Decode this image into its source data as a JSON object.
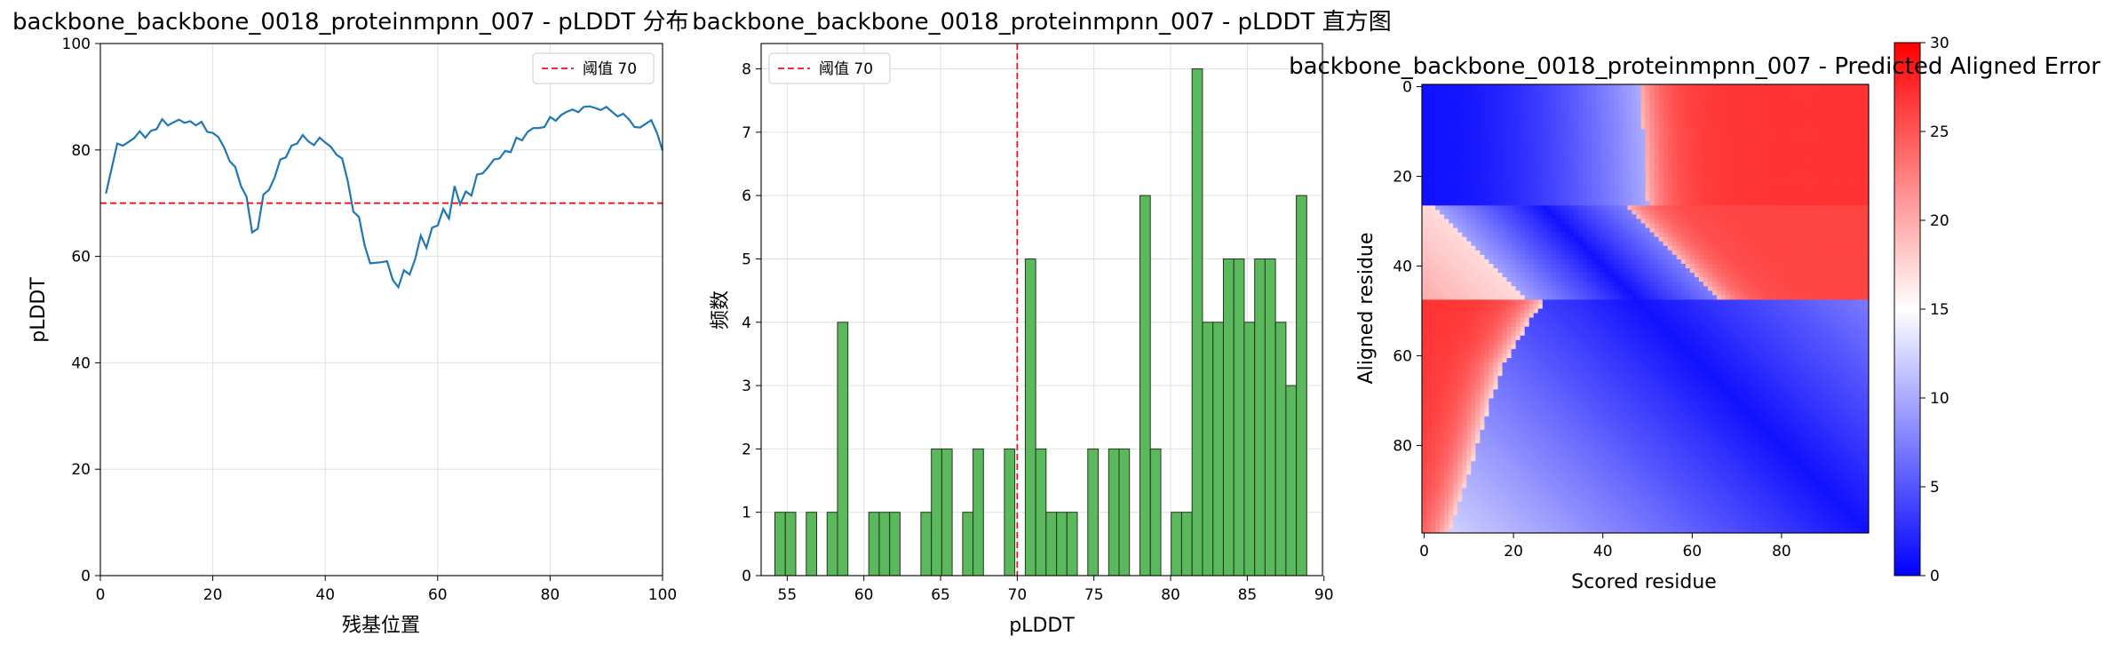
{
  "chart_data": [
    {
      "type": "line",
      "title": "backbone_backbone_0018_proteinmpnn_007 - pLDDT 分布",
      "xlabel": "残基位置",
      "ylabel": "pLDDT",
      "xlim": [
        0,
        100
      ],
      "ylim": [
        0,
        100
      ],
      "xticks": [
        0,
        20,
        40,
        60,
        80,
        100
      ],
      "yticks": [
        0,
        20,
        40,
        60,
        80,
        100
      ],
      "grid": true,
      "legend": "top-right",
      "series": [
        {
          "name": "pLDDT",
          "color": "#1f77b4",
          "x": [
            1,
            2,
            3,
            4,
            5,
            6,
            7,
            8,
            9,
            10,
            11,
            12,
            13,
            14,
            15,
            16,
            17,
            18,
            19,
            20,
            21,
            22,
            23,
            24,
            25,
            26,
            27,
            28,
            29,
            30,
            31,
            32,
            33,
            34,
            35,
            36,
            37,
            38,
            39,
            40,
            41,
            42,
            43,
            44,
            45,
            46,
            47,
            48,
            49,
            50,
            51,
            52,
            53,
            54,
            55,
            56,
            57,
            58,
            59,
            60,
            61,
            62,
            63,
            64,
            65,
            66,
            67,
            68,
            69,
            70,
            71,
            72,
            73,
            74,
            75,
            76,
            77,
            78,
            79,
            80,
            81,
            82,
            83,
            84,
            85,
            86,
            87,
            88,
            89,
            90,
            91,
            92,
            93,
            94,
            95,
            96,
            97,
            98,
            99,
            100
          ],
          "y": [
            71.8,
            76.5,
            81.2,
            80.8,
            81.5,
            82.2,
            83.5,
            82.3,
            83.6,
            83.9,
            85.8,
            84.6,
            85.2,
            85.7,
            85.1,
            85.4,
            84.6,
            85.3,
            83.4,
            83.2,
            82.4,
            80.5,
            77.9,
            76.8,
            73.2,
            71.2,
            64.5,
            65.2,
            71.6,
            72.5,
            74.8,
            78.2,
            78.6,
            80.8,
            81.2,
            82.8,
            81.6,
            80.9,
            82.3,
            81.4,
            80.6,
            79.1,
            78.4,
            74.2,
            68.4,
            67.4,
            62.1,
            58.7,
            58.8,
            58.9,
            59.1,
            55.6,
            54.2,
            57.4,
            56.6,
            59.5,
            63.9,
            61.6,
            65.4,
            65.8,
            68.9,
            67.1,
            73.2,
            69.8,
            72.2,
            71.4,
            75.4,
            75.6,
            76.8,
            78.2,
            78.4,
            79.8,
            79.6,
            82.3,
            81.8,
            83.4,
            84.1,
            84.1,
            84.3,
            86.2,
            85.5,
            86.6,
            87.2,
            87.6,
            87.1,
            88.1,
            88.2,
            87.9,
            87.5,
            88.1,
            87.2,
            86.3,
            86.8,
            85.8,
            84.3,
            84.2,
            84.9,
            85.6,
            83.2,
            79.9
          ]
        }
      ],
      "hline": {
        "y": 70,
        "label": "阈值 70",
        "color": "#e8131b"
      }
    },
    {
      "type": "bar",
      "title": "backbone_backbone_0018_proteinmpnn_007 - pLDDT 直方图",
      "xlabel": "pLDDT",
      "ylabel": "频数",
      "xlim": [
        53.3,
        89.9
      ],
      "ylim": [
        0,
        8.4
      ],
      "xticks": [
        55,
        60,
        65,
        70,
        75,
        80,
        85,
        90
      ],
      "yticks": [
        0,
        1,
        2,
        3,
        4,
        5,
        6,
        7,
        8
      ],
      "grid": true,
      "legend": "top-left",
      "bin_start": 54.2,
      "bin_width": 0.68,
      "bar_color": "#5cb85c",
      "edge_color": "#1d3a1d",
      "values": [
        1,
        1,
        0,
        1,
        0,
        1,
        4,
        0,
        0,
        1,
        1,
        1,
        0,
        0,
        1,
        2,
        2,
        0,
        1,
        2,
        0,
        0,
        2,
        0,
        5,
        2,
        1,
        1,
        1,
        0,
        2,
        0,
        2,
        2,
        0,
        6,
        2,
        0,
        1,
        1,
        8,
        4,
        4,
        5,
        5,
        4,
        5,
        5,
        4,
        3,
        6
      ],
      "vline": {
        "x": 70,
        "label": "阈值 70",
        "color": "#e8131b"
      }
    },
    {
      "type": "heatmap",
      "title": "backbone_backbone_0018_proteinmpnn_007 - Predicted Aligned Error",
      "xlabel": "Scored residue",
      "ylabel": "Aligned residue",
      "size": 100,
      "xticks": [
        0,
        20,
        40,
        60,
        80
      ],
      "yticks": [
        0,
        20,
        40,
        60,
        80
      ],
      "colorbar": {
        "min": 0,
        "max": 30,
        "ticks": [
          0,
          5,
          10,
          15,
          20,
          25,
          30
        ],
        "cmap": "bwr"
      },
      "domain_profile": [
        [
          0,
          48
        ],
        [
          10,
          49
        ],
        [
          20,
          49.5
        ],
        [
          26,
          50
        ],
        [
          30,
          44
        ],
        [
          36,
          40
        ],
        [
          40,
          35
        ],
        [
          44,
          30
        ],
        [
          48,
          27
        ],
        [
          52,
          24
        ],
        [
          57,
          21
        ],
        [
          62,
          18
        ],
        [
          70,
          15
        ],
        [
          80,
          12
        ],
        [
          90,
          9
        ],
        [
          99,
          6
        ]
      ]
    }
  ]
}
